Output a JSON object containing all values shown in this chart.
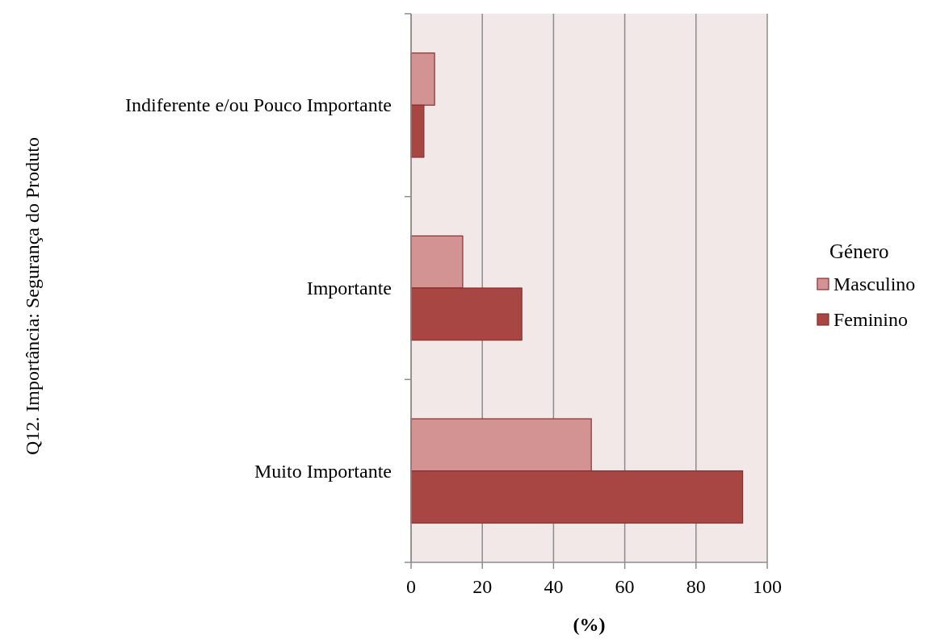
{
  "chart_data": {
    "type": "bar",
    "orientation": "horizontal",
    "categories": [
      "Indiferente e/ou Pouco Importante",
      "Importante",
      "Muito Importante"
    ],
    "series": [
      {
        "name": "Masculino",
        "color": "#d39392",
        "values": [
          6.6,
          14.5,
          50.6
        ]
      },
      {
        "name": "Feminino",
        "color": "#a84644",
        "values": [
          3.6,
          31.1,
          93.1
        ]
      }
    ],
    "xlim": [
      0,
      100
    ],
    "xticks": [
      0,
      20,
      40,
      60,
      80,
      100
    ],
    "xlabel": "(%)",
    "ylabel": "Q12. Importância: Segurança do Produto",
    "legend_title": "Género",
    "legend": "right",
    "grid": "x"
  }
}
